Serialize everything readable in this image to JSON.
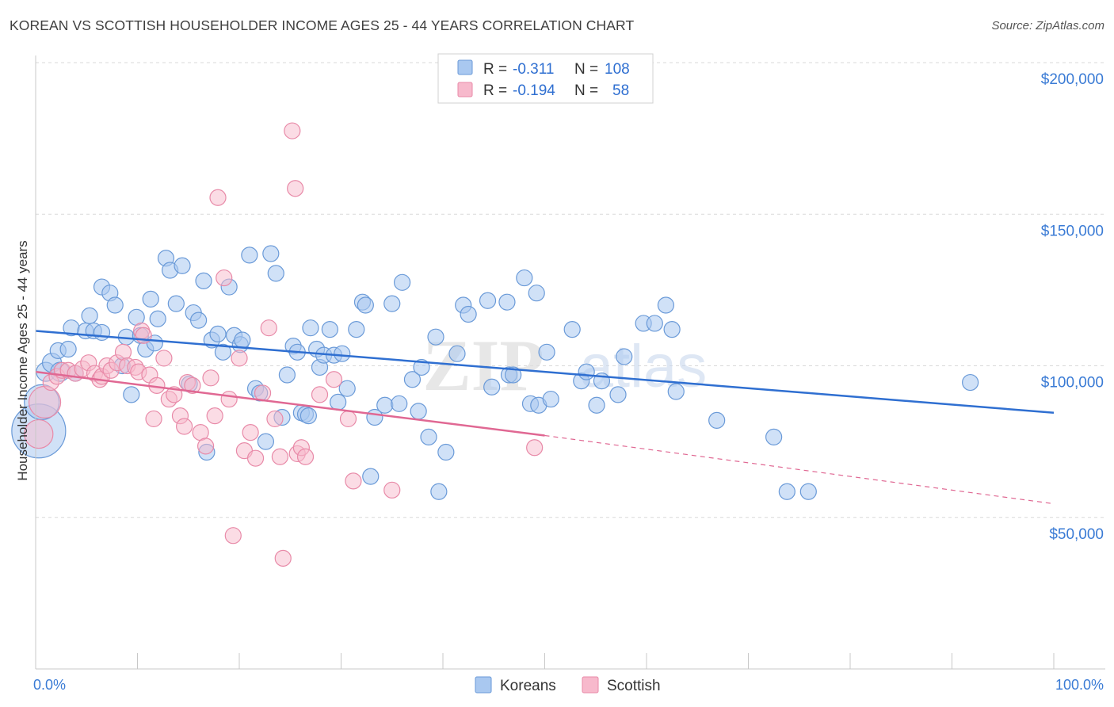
{
  "title": "KOREAN VS SCOTTISH HOUSEHOLDER INCOME AGES 25 - 44 YEARS CORRELATION CHART",
  "source": "Source: ZipAtlas.com",
  "watermark": {
    "zip": "ZIP",
    "atlas": "atlas"
  },
  "colors": {
    "koreans_fill": "#a9c8f0",
    "koreans_stroke": "#6a9ad8",
    "koreans_line": "#2f6fd1",
    "scottish_fill": "#f7b9cc",
    "scottish_stroke": "#e88aa8",
    "scottish_line": "#e06893",
    "grid": "#d9d9d9",
    "axis_label": "#3a7bd5"
  },
  "legend": {
    "rows": [
      {
        "series": "koreans",
        "r_label": "R =",
        "r_value": "-0.311",
        "n_label": "N =",
        "n_value": "108"
      },
      {
        "series": "scottish",
        "r_label": "R =",
        "r_value": "-0.194",
        "n_label": "N =",
        "n_value": "58"
      }
    ]
  },
  "bottom_legend": [
    "Koreans",
    "Scottish"
  ],
  "chart_data": {
    "type": "scatter",
    "title": "KOREAN VS SCOTTISH HOUSEHOLDER INCOME AGES 25 - 44 YEARS CORRELATION CHART",
    "xlabel": "",
    "ylabel": "Householder Income Ages 25 - 44 years",
    "x_tick_labels": [
      "0.0%",
      "100.0%"
    ],
    "y_tick_labels": [
      "$50,000",
      "$100,000",
      "$150,000",
      "$200,000"
    ],
    "y_ticks": [
      50000,
      100000,
      150000,
      200000
    ],
    "xlim": [
      0,
      100
    ],
    "ylim": [
      0,
      205000
    ],
    "grid": true,
    "legend_position": "top-center",
    "series": [
      {
        "name": "Koreans",
        "trend": {
          "x0": 0,
          "y0": 111500,
          "x1": 100,
          "y1": 84500
        },
        "points": [
          [
            0.3,
            78500,
            34
          ],
          [
            0.6,
            88000,
            22
          ],
          [
            1.0,
            98000,
            12
          ],
          [
            1.6,
            101000,
            12
          ],
          [
            2.2,
            105000,
            10
          ],
          [
            2.4,
            98000,
            12
          ],
          [
            3.2,
            105500,
            10
          ],
          [
            3.5,
            112500,
            10
          ],
          [
            3.9,
            97500,
            10
          ],
          [
            5.3,
            116500,
            10
          ],
          [
            4.9,
            111500,
            10
          ],
          [
            5.7,
            111500,
            10
          ],
          [
            6.5,
            111000,
            10
          ],
          [
            6.5,
            126000,
            10
          ],
          [
            7.3,
            124000,
            10
          ],
          [
            7.8,
            120000,
            10
          ],
          [
            8.5,
            100000,
            10
          ],
          [
            8.9,
            109500,
            10
          ],
          [
            9.4,
            90500,
            10
          ],
          [
            9.9,
            116000,
            10
          ],
          [
            10.3,
            110000,
            10
          ],
          [
            10.8,
            105500,
            10
          ],
          [
            11.3,
            122000,
            10
          ],
          [
            11.7,
            107500,
            10
          ],
          [
            12.0,
            115500,
            10
          ],
          [
            12.8,
            135500,
            10
          ],
          [
            13.2,
            131500,
            10
          ],
          [
            13.8,
            120500,
            10
          ],
          [
            14.4,
            133000,
            10
          ],
          [
            15.1,
            94000,
            10
          ],
          [
            15.5,
            117500,
            10
          ],
          [
            16.0,
            115000,
            10
          ],
          [
            16.5,
            128000,
            10
          ],
          [
            16.8,
            71500,
            10
          ],
          [
            17.3,
            108500,
            10
          ],
          [
            17.9,
            110500,
            10
          ],
          [
            18.4,
            104500,
            10
          ],
          [
            19.0,
            126000,
            10
          ],
          [
            19.5,
            110000,
            10
          ],
          [
            20.1,
            107000,
            10
          ],
          [
            20.3,
            108500,
            10
          ],
          [
            21.0,
            136500,
            10
          ],
          [
            21.6,
            92500,
            10
          ],
          [
            22.0,
            91000,
            10
          ],
          [
            22.6,
            75000,
            10
          ],
          [
            23.1,
            137000,
            10
          ],
          [
            23.6,
            130500,
            10
          ],
          [
            24.2,
            83000,
            10
          ],
          [
            24.7,
            97000,
            10
          ],
          [
            25.3,
            106500,
            10
          ],
          [
            25.7,
            104500,
            10
          ],
          [
            26.1,
            84500,
            10
          ],
          [
            26.5,
            84000,
            10
          ],
          [
            26.8,
            83500,
            10
          ],
          [
            27.0,
            112500,
            10
          ],
          [
            27.6,
            105500,
            10
          ],
          [
            27.9,
            99500,
            10
          ],
          [
            28.3,
            103500,
            10
          ],
          [
            28.9,
            112000,
            10
          ],
          [
            29.3,
            103500,
            10
          ],
          [
            29.7,
            88000,
            10
          ],
          [
            30.1,
            104000,
            10
          ],
          [
            30.6,
            92500,
            10
          ],
          [
            31.5,
            112000,
            10
          ],
          [
            32.1,
            121000,
            10
          ],
          [
            32.4,
            120000,
            10
          ],
          [
            32.9,
            63500,
            10
          ],
          [
            33.3,
            83000,
            10
          ],
          [
            34.3,
            87000,
            10
          ],
          [
            35.0,
            120500,
            10
          ],
          [
            35.7,
            87500,
            10
          ],
          [
            36.0,
            127500,
            10
          ],
          [
            37.0,
            95500,
            10
          ],
          [
            37.6,
            85000,
            10
          ],
          [
            37.9,
            99500,
            10
          ],
          [
            38.6,
            76500,
            10
          ],
          [
            39.3,
            109500,
            10
          ],
          [
            39.6,
            58500,
            10
          ],
          [
            40.3,
            71500,
            10
          ],
          [
            41.4,
            104000,
            10
          ],
          [
            42.0,
            120000,
            10
          ],
          [
            42.5,
            117000,
            10
          ],
          [
            44.4,
            121500,
            10
          ],
          [
            44.8,
            93000,
            10
          ],
          [
            46.3,
            121000,
            10
          ],
          [
            46.5,
            97000,
            10
          ],
          [
            46.9,
            97000,
            10
          ],
          [
            48.0,
            129000,
            10
          ],
          [
            48.6,
            87500,
            10
          ],
          [
            49.2,
            124000,
            10
          ],
          [
            49.4,
            87000,
            10
          ],
          [
            50.2,
            104500,
            10
          ],
          [
            50.6,
            89000,
            10
          ],
          [
            52.7,
            112000,
            10
          ],
          [
            53.6,
            95000,
            10
          ],
          [
            54.1,
            98000,
            10
          ],
          [
            55.1,
            87000,
            10
          ],
          [
            55.6,
            95000,
            10
          ],
          [
            57.2,
            90500,
            10
          ],
          [
            57.8,
            103000,
            10
          ],
          [
            59.7,
            114000,
            10
          ],
          [
            60.8,
            114000,
            10
          ],
          [
            61.9,
            120000,
            10
          ],
          [
            62.5,
            112000,
            10
          ],
          [
            62.9,
            91500,
            10
          ],
          [
            66.9,
            82000,
            10
          ],
          [
            72.5,
            76500,
            10
          ],
          [
            73.8,
            58500,
            10
          ],
          [
            75.9,
            58500,
            10
          ],
          [
            91.8,
            94500,
            10
          ]
        ]
      },
      {
        "name": "Scottish",
        "trend": {
          "x0": 0,
          "y0": 98000,
          "x1": 50,
          "y1": 77000,
          "dashed_to_x": 100,
          "dashed_to_y": 54500
        },
        "points": [
          [
            0.3,
            77500,
            18
          ],
          [
            0.9,
            88000,
            20
          ],
          [
            1.5,
            94500,
            10
          ],
          [
            2.1,
            96500,
            10
          ],
          [
            2.6,
            98500,
            10
          ],
          [
            3.2,
            98500,
            10
          ],
          [
            3.9,
            97500,
            10
          ],
          [
            4.6,
            99000,
            10
          ],
          [
            5.2,
            101000,
            10
          ],
          [
            5.8,
            97500,
            10
          ],
          [
            6.3,
            95500,
            10
          ],
          [
            6.5,
            96500,
            10
          ],
          [
            7.0,
            100000,
            10
          ],
          [
            7.4,
            98500,
            10
          ],
          [
            8.0,
            101000,
            10
          ],
          [
            8.6,
            104500,
            10
          ],
          [
            9.0,
            100000,
            10
          ],
          [
            9.8,
            99500,
            10
          ],
          [
            10.1,
            98000,
            10
          ],
          [
            10.4,
            111500,
            10
          ],
          [
            10.6,
            110000,
            10
          ],
          [
            11.2,
            97000,
            10
          ],
          [
            11.6,
            82500,
            10
          ],
          [
            11.9,
            93500,
            10
          ],
          [
            12.6,
            102500,
            10
          ],
          [
            13.1,
            89000,
            10
          ],
          [
            13.6,
            90500,
            10
          ],
          [
            14.2,
            83500,
            10
          ],
          [
            14.6,
            80000,
            10
          ],
          [
            14.9,
            94500,
            10
          ],
          [
            15.4,
            93500,
            10
          ],
          [
            16.2,
            78000,
            10
          ],
          [
            16.7,
            73500,
            10
          ],
          [
            17.2,
            96000,
            10
          ],
          [
            17.6,
            83500,
            10
          ],
          [
            17.9,
            155500,
            10
          ],
          [
            18.5,
            129000,
            10
          ],
          [
            19.0,
            89000,
            10
          ],
          [
            19.4,
            44000,
            10
          ],
          [
            20.0,
            102500,
            10
          ],
          [
            20.5,
            72000,
            10
          ],
          [
            21.1,
            78000,
            10
          ],
          [
            21.6,
            69500,
            10
          ],
          [
            22.3,
            91000,
            10
          ],
          [
            22.9,
            112500,
            10
          ],
          [
            23.5,
            82500,
            10
          ],
          [
            24.0,
            70000,
            10
          ],
          [
            24.3,
            36500,
            10
          ],
          [
            25.2,
            177500,
            10
          ],
          [
            25.5,
            158500,
            10
          ],
          [
            25.7,
            71000,
            10
          ],
          [
            26.1,
            73000,
            10
          ],
          [
            26.5,
            70000,
            10
          ],
          [
            27.9,
            90500,
            10
          ],
          [
            29.3,
            95500,
            10
          ],
          [
            30.7,
            82500,
            10
          ],
          [
            31.2,
            62000,
            10
          ],
          [
            35.0,
            59000,
            10
          ],
          [
            49.0,
            73000,
            10
          ]
        ]
      }
    ]
  }
}
